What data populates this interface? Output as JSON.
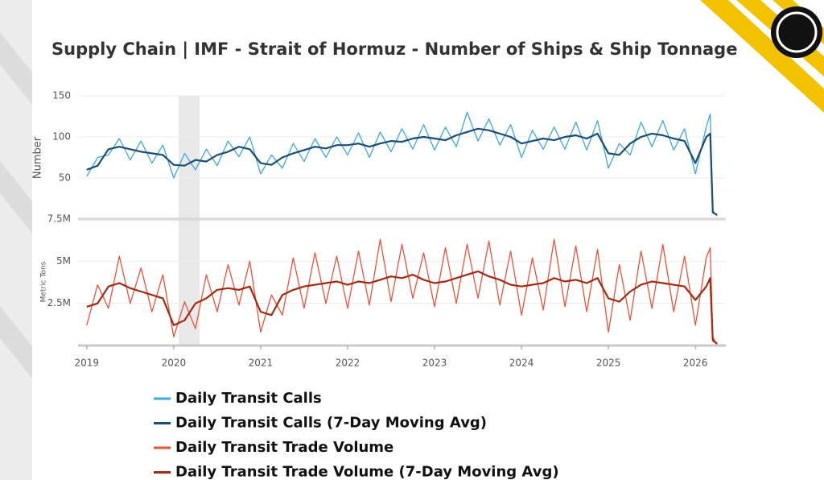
{
  "chart_data": [
    {
      "type": "line",
      "title": "Supply Chain | IMF - Strait of Hormuz - Number of Ships & Ship Tonnage",
      "ylabel": "Number",
      "x": [
        2019,
        2019.125,
        2019.25,
        2019.375,
        2019.5,
        2019.625,
        2019.75,
        2019.875,
        2020,
        2020.125,
        2020.25,
        2020.375,
        2020.5,
        2020.625,
        2020.75,
        2020.875,
        2021,
        2021.125,
        2021.25,
        2021.375,
        2021.5,
        2021.625,
        2021.75,
        2021.875,
        2022,
        2022.125,
        2022.25,
        2022.375,
        2022.5,
        2022.625,
        2022.75,
        2022.875,
        2023,
        2023.125,
        2023.25,
        2023.375,
        2023.5,
        2023.625,
        2023.75,
        2023.875,
        2024,
        2024.125,
        2024.25,
        2024.375,
        2024.5,
        2024.625,
        2024.75,
        2024.875,
        2025,
        2025.125,
        2025.25,
        2025.375,
        2025.5,
        2025.625,
        2025.75,
        2025.875,
        2026,
        2026.125,
        2026.17,
        2026.2,
        2026.25
      ],
      "xlim": [
        2018.9,
        2026.35
      ],
      "ylim": [
        0,
        150
      ],
      "yticks": [
        50,
        100,
        150
      ],
      "grid": true,
      "series": [
        {
          "name": "Daily Transit Calls",
          "color": "#3ea8dc",
          "values": [
            52,
            75,
            78,
            98,
            72,
            95,
            68,
            90,
            50,
            80,
            60,
            85,
            65,
            95,
            76,
            100,
            55,
            78,
            62,
            92,
            70,
            98,
            75,
            100,
            78,
            105,
            75,
            106,
            82,
            110,
            85,
            115,
            84,
            112,
            88,
            130,
            95,
            122,
            90,
            115,
            75,
            108,
            85,
            112,
            85,
            118,
            84,
            120,
            62,
            92,
            78,
            118,
            88,
            120,
            84,
            110,
            55,
            112,
            128,
            10,
            4
          ]
        },
        {
          "name": "Daily Transit Calls (7-Day Moving Avg)",
          "color": "#1b4e74",
          "values": [
            60,
            65,
            85,
            88,
            85,
            82,
            80,
            78,
            66,
            65,
            72,
            70,
            78,
            82,
            88,
            85,
            68,
            66,
            75,
            80,
            84,
            88,
            86,
            90,
            90,
            92,
            88,
            92,
            95,
            94,
            98,
            100,
            98,
            96,
            102,
            106,
            110,
            108,
            104,
            100,
            92,
            95,
            98,
            96,
            100,
            102,
            98,
            104,
            80,
            78,
            92,
            100,
            104,
            102,
            98,
            95,
            68,
            100,
            104,
            8,
            5
          ]
        }
      ]
    },
    {
      "type": "line",
      "ylabel": "Metric Tons",
      "x": [
        2019,
        2019.125,
        2019.25,
        2019.375,
        2019.5,
        2019.625,
        2019.75,
        2019.875,
        2020,
        2020.125,
        2020.25,
        2020.375,
        2020.5,
        2020.625,
        2020.75,
        2020.875,
        2021,
        2021.125,
        2021.25,
        2021.375,
        2021.5,
        2021.625,
        2021.75,
        2021.875,
        2022,
        2022.125,
        2022.25,
        2022.375,
        2022.5,
        2022.625,
        2022.75,
        2022.875,
        2023,
        2023.125,
        2023.25,
        2023.375,
        2023.5,
        2023.625,
        2023.75,
        2023.875,
        2024,
        2024.125,
        2024.25,
        2024.375,
        2024.5,
        2024.625,
        2024.75,
        2024.875,
        2025,
        2025.125,
        2025.25,
        2025.375,
        2025.5,
        2025.625,
        2025.75,
        2025.875,
        2026,
        2026.125,
        2026.17,
        2026.2,
        2026.25
      ],
      "xlim": [
        2018.9,
        2026.35
      ],
      "xticks": [
        2019,
        2020,
        2021,
        2022,
        2023,
        2024,
        2025,
        2026
      ],
      "ylim": [
        0,
        7500000
      ],
      "yticks": [
        {
          "value": 2500000,
          "label": "2.5M"
        },
        {
          "value": 5000000,
          "label": "5M"
        },
        {
          "value": 7500000,
          "label": "7.5M"
        }
      ],
      "grid": true,
      "series": [
        {
          "name": "Daily Transit Trade Volume",
          "color": "#e9533d",
          "values": [
            1200000,
            3600000,
            2200000,
            5300000,
            2500000,
            4600000,
            2000000,
            4200000,
            500000,
            2600000,
            1000000,
            4200000,
            2000000,
            4800000,
            2400000,
            5000000,
            800000,
            3000000,
            1800000,
            5200000,
            2200000,
            5500000,
            2500000,
            5300000,
            2200000,
            5600000,
            2400000,
            6300000,
            2600000,
            6000000,
            2800000,
            5500000,
            2300000,
            5800000,
            2500000,
            6000000,
            2800000,
            6200000,
            2400000,
            5600000,
            1800000,
            5200000,
            2100000,
            6300000,
            2300000,
            5900000,
            2000000,
            5700000,
            800000,
            4800000,
            1500000,
            5600000,
            2200000,
            6000000,
            2000000,
            5300000,
            1200000,
            5200000,
            5800000,
            500000,
            50000
          ]
        },
        {
          "name": "Daily Transit Trade Volume (7-Day Moving Avg)",
          "color": "#a52a12",
          "values": [
            2300000,
            2500000,
            3500000,
            3700000,
            3400000,
            3200000,
            3000000,
            2800000,
            1200000,
            1500000,
            2500000,
            2800000,
            3300000,
            3400000,
            3300000,
            3500000,
            2000000,
            1800000,
            3000000,
            3300000,
            3500000,
            3600000,
            3700000,
            3800000,
            3600000,
            3800000,
            3700000,
            3900000,
            4100000,
            4000000,
            4200000,
            3900000,
            3700000,
            3800000,
            4000000,
            4200000,
            4400000,
            4100000,
            3900000,
            3600000,
            3500000,
            3600000,
            3700000,
            4000000,
            3800000,
            3900000,
            3700000,
            4000000,
            2800000,
            2600000,
            3200000,
            3600000,
            3800000,
            3700000,
            3600000,
            3500000,
            2700000,
            3500000,
            4000000,
            300000,
            100000
          ]
        }
      ]
    }
  ]
}
